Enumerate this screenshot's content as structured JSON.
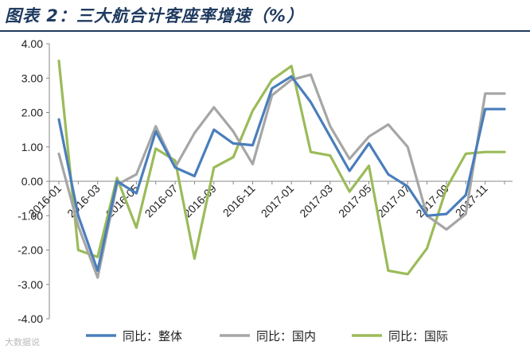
{
  "title": "图表 2：三大航合计客座率增速（%）",
  "watermark": "大数据说",
  "chart_data": {
    "type": "line",
    "title": "图表 2：三大航合计客座率增速（%）",
    "ylim": [
      -4,
      4
    ],
    "yticks": [
      "4.00",
      "3.00",
      "2.00",
      "1.00",
      "0.00",
      "-1.00",
      "-2.00",
      "-3.00",
      "-4.00"
    ],
    "x_labels": [
      "2016-01",
      "2016-03",
      "2016-05",
      "2016-07",
      "2016-09",
      "2016-11",
      "2017-01",
      "2017-03",
      "2017-05",
      "2017-07",
      "2017-09",
      "2017-11"
    ],
    "x": [
      "2016-01",
      "2016-02",
      "2016-03",
      "2016-04",
      "2016-05",
      "2016-06",
      "2016-07",
      "2016-08",
      "2016-09",
      "2016-10",
      "2016-11",
      "2016-12",
      "2017-01",
      "2017-02",
      "2017-03",
      "2017-04",
      "2017-05",
      "2017-06",
      "2017-07",
      "2017-08",
      "2017-09",
      "2017-10",
      "2017-11",
      "2017-12"
    ],
    "series": [
      {
        "name": "同比：整体",
        "color": "#4a7ebb",
        "values": [
          1.8,
          -1.0,
          -2.6,
          0.0,
          -0.35,
          1.45,
          0.4,
          0.15,
          1.5,
          1.1,
          1.05,
          2.7,
          3.05,
          2.3,
          1.3,
          0.3,
          1.1,
          0.2,
          -0.15,
          -1.0,
          -0.95,
          -0.4,
          2.1,
          2.1
        ]
      },
      {
        "name": "同比：国内",
        "color": "#a6a6a6",
        "values": [
          0.8,
          -1.3,
          -2.8,
          -0.1,
          0.2,
          1.6,
          0.4,
          1.4,
          2.15,
          1.45,
          0.5,
          2.5,
          2.95,
          3.1,
          1.6,
          0.65,
          1.3,
          1.65,
          1.0,
          -1.0,
          -1.4,
          -0.95,
          2.55,
          2.55
        ]
      },
      {
        "name": "同比：国际",
        "color": "#9bbb59",
        "values": [
          3.5,
          -2.0,
          -2.2,
          0.1,
          -1.35,
          0.95,
          0.6,
          -2.25,
          0.4,
          0.7,
          2.05,
          2.95,
          3.35,
          0.85,
          0.75,
          -0.3,
          0.45,
          -2.6,
          -2.7,
          -1.95,
          -0.2,
          0.8,
          0.85,
          0.85
        ]
      }
    ],
    "legend": [
      "同比：整体",
      "同比：国内",
      "同比：国际"
    ],
    "legend_position": "bottom"
  }
}
